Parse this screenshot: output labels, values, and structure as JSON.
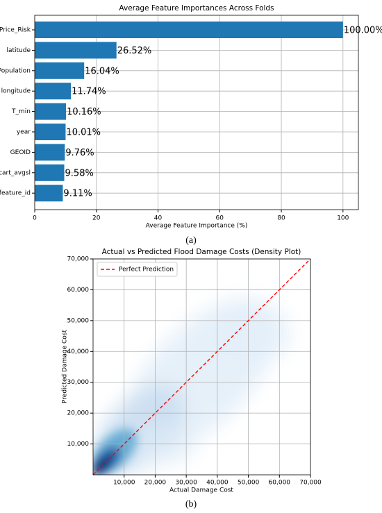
{
  "chart_data": [
    {
      "type": "barh",
      "title": "Average Feature Importances Across Folds",
      "xlabel": "Average Feature Importance (%)",
      "caption": "(a)",
      "categories": [
        "Price_Risk",
        "latitude",
        "Population",
        "longitude",
        "T_min",
        "year",
        "GEOID",
        "cart_avgsl",
        "feature_id"
      ],
      "values": [
        100,
        26.52,
        16.04,
        11.74,
        10.16,
        10.01,
        9.76,
        9.58,
        9.11
      ],
      "value_labels": [
        "100.00%",
        "26.52%",
        "16.04%",
        "11.74%",
        "10.16%",
        "10.01%",
        "9.76%",
        "9.58%",
        "9.11%"
      ],
      "color": "#1f77b4",
      "xlim": [
        0,
        105
      ],
      "xticks": [
        0,
        20,
        40,
        60,
        80,
        100
      ],
      "grid": true
    },
    {
      "type": "density",
      "title": "Actual vs Predicted Flood Damage Costs (Density Plot)",
      "xlabel": "Actual Damage Cost",
      "ylabel": "Predicted Damage Cost",
      "caption": "(b)",
      "series": [
        {
          "name": "Perfect Prediction",
          "color": "#ff0000",
          "x": [
            0,
            70000
          ],
          "values": [
            0,
            70000
          ]
        }
      ],
      "xlim": [
        0,
        70000
      ],
      "ylim": [
        0,
        70000
      ],
      "xticks": [
        {
          "value": 10000,
          "label": "10,000"
        },
        {
          "value": 20000,
          "label": "20,000"
        },
        {
          "value": 30000,
          "label": "30,000"
        },
        {
          "value": 40000,
          "label": "40,000"
        },
        {
          "value": 50000,
          "label": "50,000"
        },
        {
          "value": 60000,
          "label": "60,000"
        },
        {
          "value": 70000,
          "label": "70,000"
        }
      ],
      "yticks": [
        {
          "value": 10000,
          "label": "10,000"
        },
        {
          "value": 20000,
          "label": "20,000"
        },
        {
          "value": 30000,
          "label": "30,000"
        },
        {
          "value": 40000,
          "label": "40,000"
        },
        {
          "value": 50000,
          "label": "50,000"
        },
        {
          "value": 60000,
          "label": "60,000"
        },
        {
          "value": 70000,
          "label": "70,000"
        }
      ],
      "grid": true,
      "legend": "upper left"
    }
  ]
}
